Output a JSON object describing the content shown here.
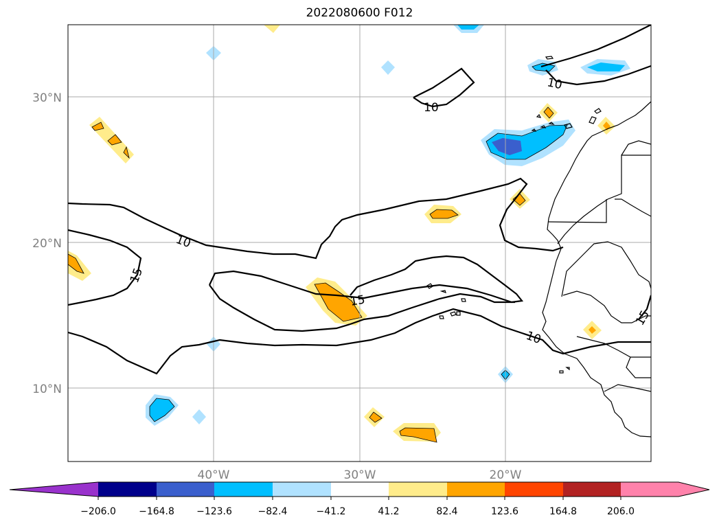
{
  "title": "2022080600 F012",
  "map": {
    "lat_labels": [
      "30°N",
      "20°N",
      "10°N"
    ],
    "lon_labels": [
      "40°W",
      "30°W",
      "20°W"
    ],
    "contour_labels": [
      "10",
      "10",
      "10",
      "10",
      "15",
      "15",
      "15"
    ]
  },
  "colorbar": {
    "tick_labels": [
      "−206.0",
      "−164.8",
      "−123.6",
      "−82.4",
      "−41.2",
      "41.2",
      "82.4",
      "123.6",
      "164.8",
      "206.0"
    ],
    "colors": [
      "#9932cc",
      "#00008b",
      "#3a5fcd",
      "#00bfff",
      "#b0e2ff",
      "#ffffff",
      "#ffec8b",
      "#ffa500",
      "#ff4500",
      "#b22222",
      "#ff82ab"
    ]
  }
}
